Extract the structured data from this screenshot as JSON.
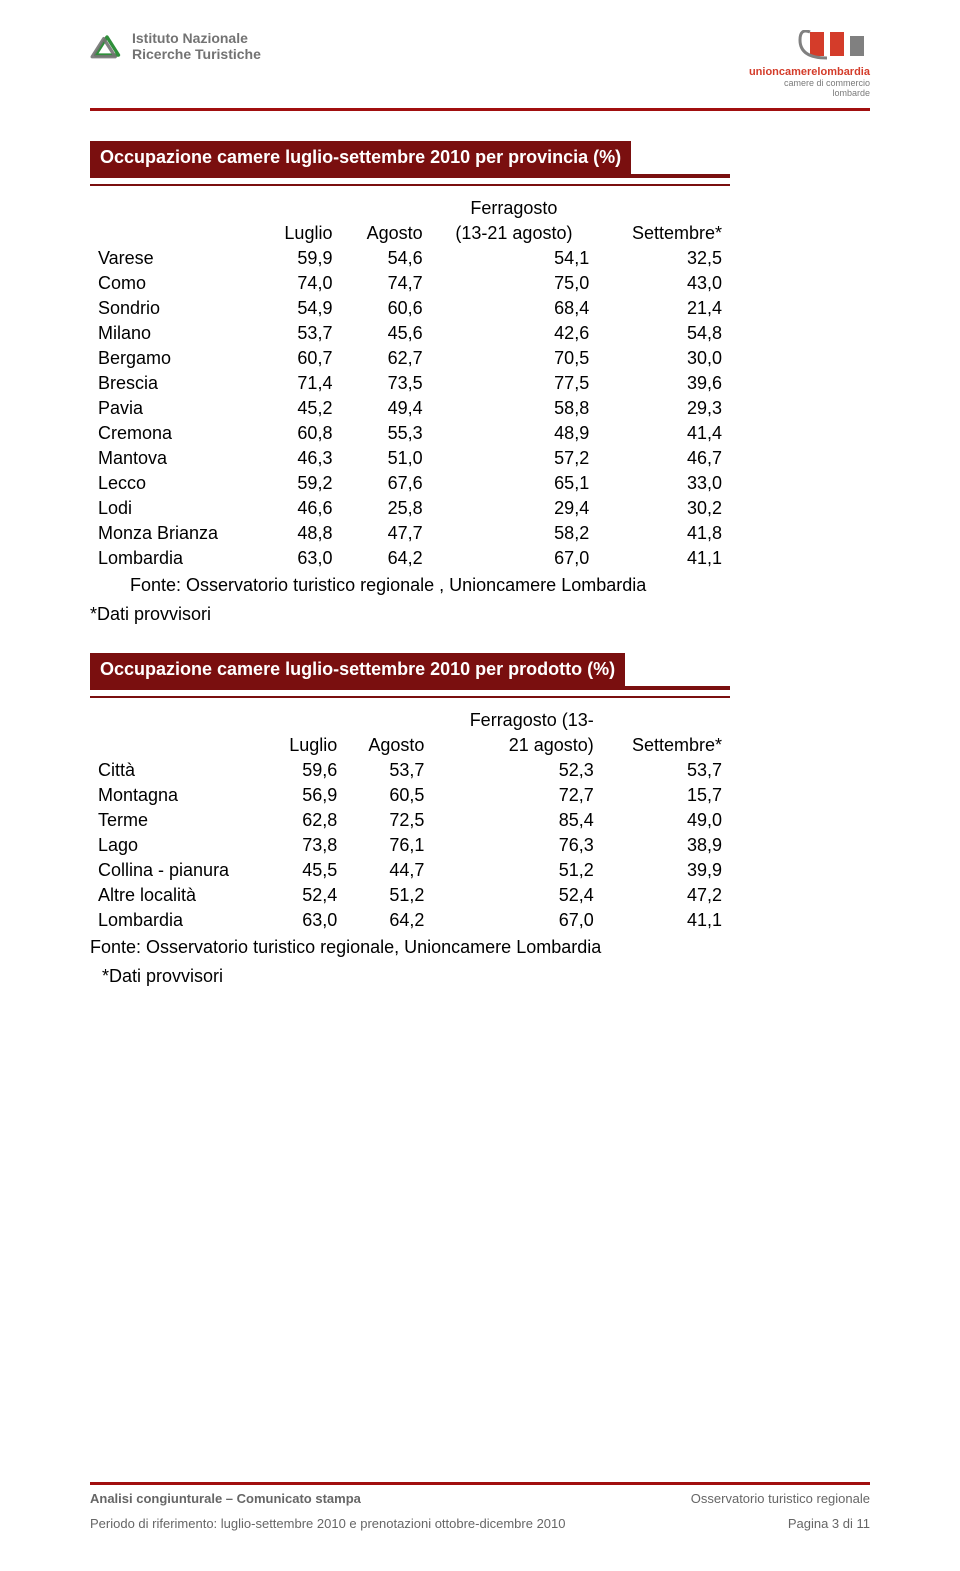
{
  "header": {
    "left_logo_line1": "Istituto Nazionale",
    "left_logo_line2": "Ricerche Turistiche",
    "right_logo_brand": "unioncamerelombardia",
    "right_logo_sub1": "camere di commercio",
    "right_logo_sub2": "lombarde"
  },
  "table1": {
    "title": "Occupazione camere luglio-settembre 2010 per provincia (%)",
    "columns": [
      "",
      "Luglio",
      "Agosto",
      "Ferragosto (13-21 agosto)",
      "Settembre*"
    ],
    "rows": [
      [
        "Varese",
        "59,9",
        "54,6",
        "54,1",
        "32,5"
      ],
      [
        "Como",
        "74,0",
        "74,7",
        "75,0",
        "43,0"
      ],
      [
        "Sondrio",
        "54,9",
        "60,6",
        "68,4",
        "21,4"
      ],
      [
        "Milano",
        "53,7",
        "45,6",
        "42,6",
        "54,8"
      ],
      [
        "Bergamo",
        "60,7",
        "62,7",
        "70,5",
        "30,0"
      ],
      [
        "Brescia",
        "71,4",
        "73,5",
        "77,5",
        "39,6"
      ],
      [
        "Pavia",
        "45,2",
        "49,4",
        "58,8",
        "29,3"
      ],
      [
        "Cremona",
        "60,8",
        "55,3",
        "48,9",
        "41,4"
      ],
      [
        "Mantova",
        "46,3",
        "51,0",
        "57,2",
        "46,7"
      ],
      [
        "Lecco",
        "59,2",
        "67,6",
        "65,1",
        "33,0"
      ],
      [
        "Lodi",
        "46,6",
        "25,8",
        "29,4",
        "30,2"
      ],
      [
        "Monza Brianza",
        "48,8",
        "47,7",
        "58,2",
        "41,8"
      ],
      [
        "Lombardia",
        "63,0",
        "64,2",
        "67,0",
        "41,1"
      ]
    ],
    "source": "Fonte: Osservatorio turistico regionale , Unioncamere Lombardia",
    "note": "*Dati provvisori"
  },
  "table2": {
    "title": "Occupazione camere luglio-settembre 2010 per prodotto (%)",
    "columns": [
      "",
      "Luglio",
      "Agosto",
      "Ferragosto (13-21 agosto)",
      "Settembre*"
    ],
    "rows": [
      [
        "Città",
        "59,6",
        "53,7",
        "52,3",
        "53,7"
      ],
      [
        "Montagna",
        "56,9",
        "60,5",
        "72,7",
        "15,7"
      ],
      [
        "Terme",
        "62,8",
        "72,5",
        "85,4",
        "49,0"
      ],
      [
        "Lago",
        "73,8",
        "76,1",
        "76,3",
        "38,9"
      ],
      [
        "Collina - pianura",
        "45,5",
        "44,7",
        "51,2",
        "39,9"
      ],
      [
        "Altre località",
        "52,4",
        "51,2",
        "52,4",
        "47,2"
      ],
      [
        "Lombardia",
        "63,0",
        "64,2",
        "67,0",
        "41,1"
      ]
    ],
    "source": "Fonte: Osservatorio turistico regionale, Unioncamere Lombardia",
    "note": "*Dati provvisori"
  },
  "footer": {
    "left1_bold": "Analisi congiunturale – Comunicato stampa",
    "right1": "Osservatorio turistico regionale",
    "left2": "Periodo di riferimento: luglio-settembre 2010 e prenotazioni ottobre-dicembre 2010",
    "right2": "Pagina 3 di 11"
  },
  "colors": {
    "brand_red": "#7a0f0f",
    "rule_red": "#a10f0f",
    "logo_green": "#2f8f3a",
    "logo_grey": "#737373",
    "right_brand": "#d43c2a"
  }
}
